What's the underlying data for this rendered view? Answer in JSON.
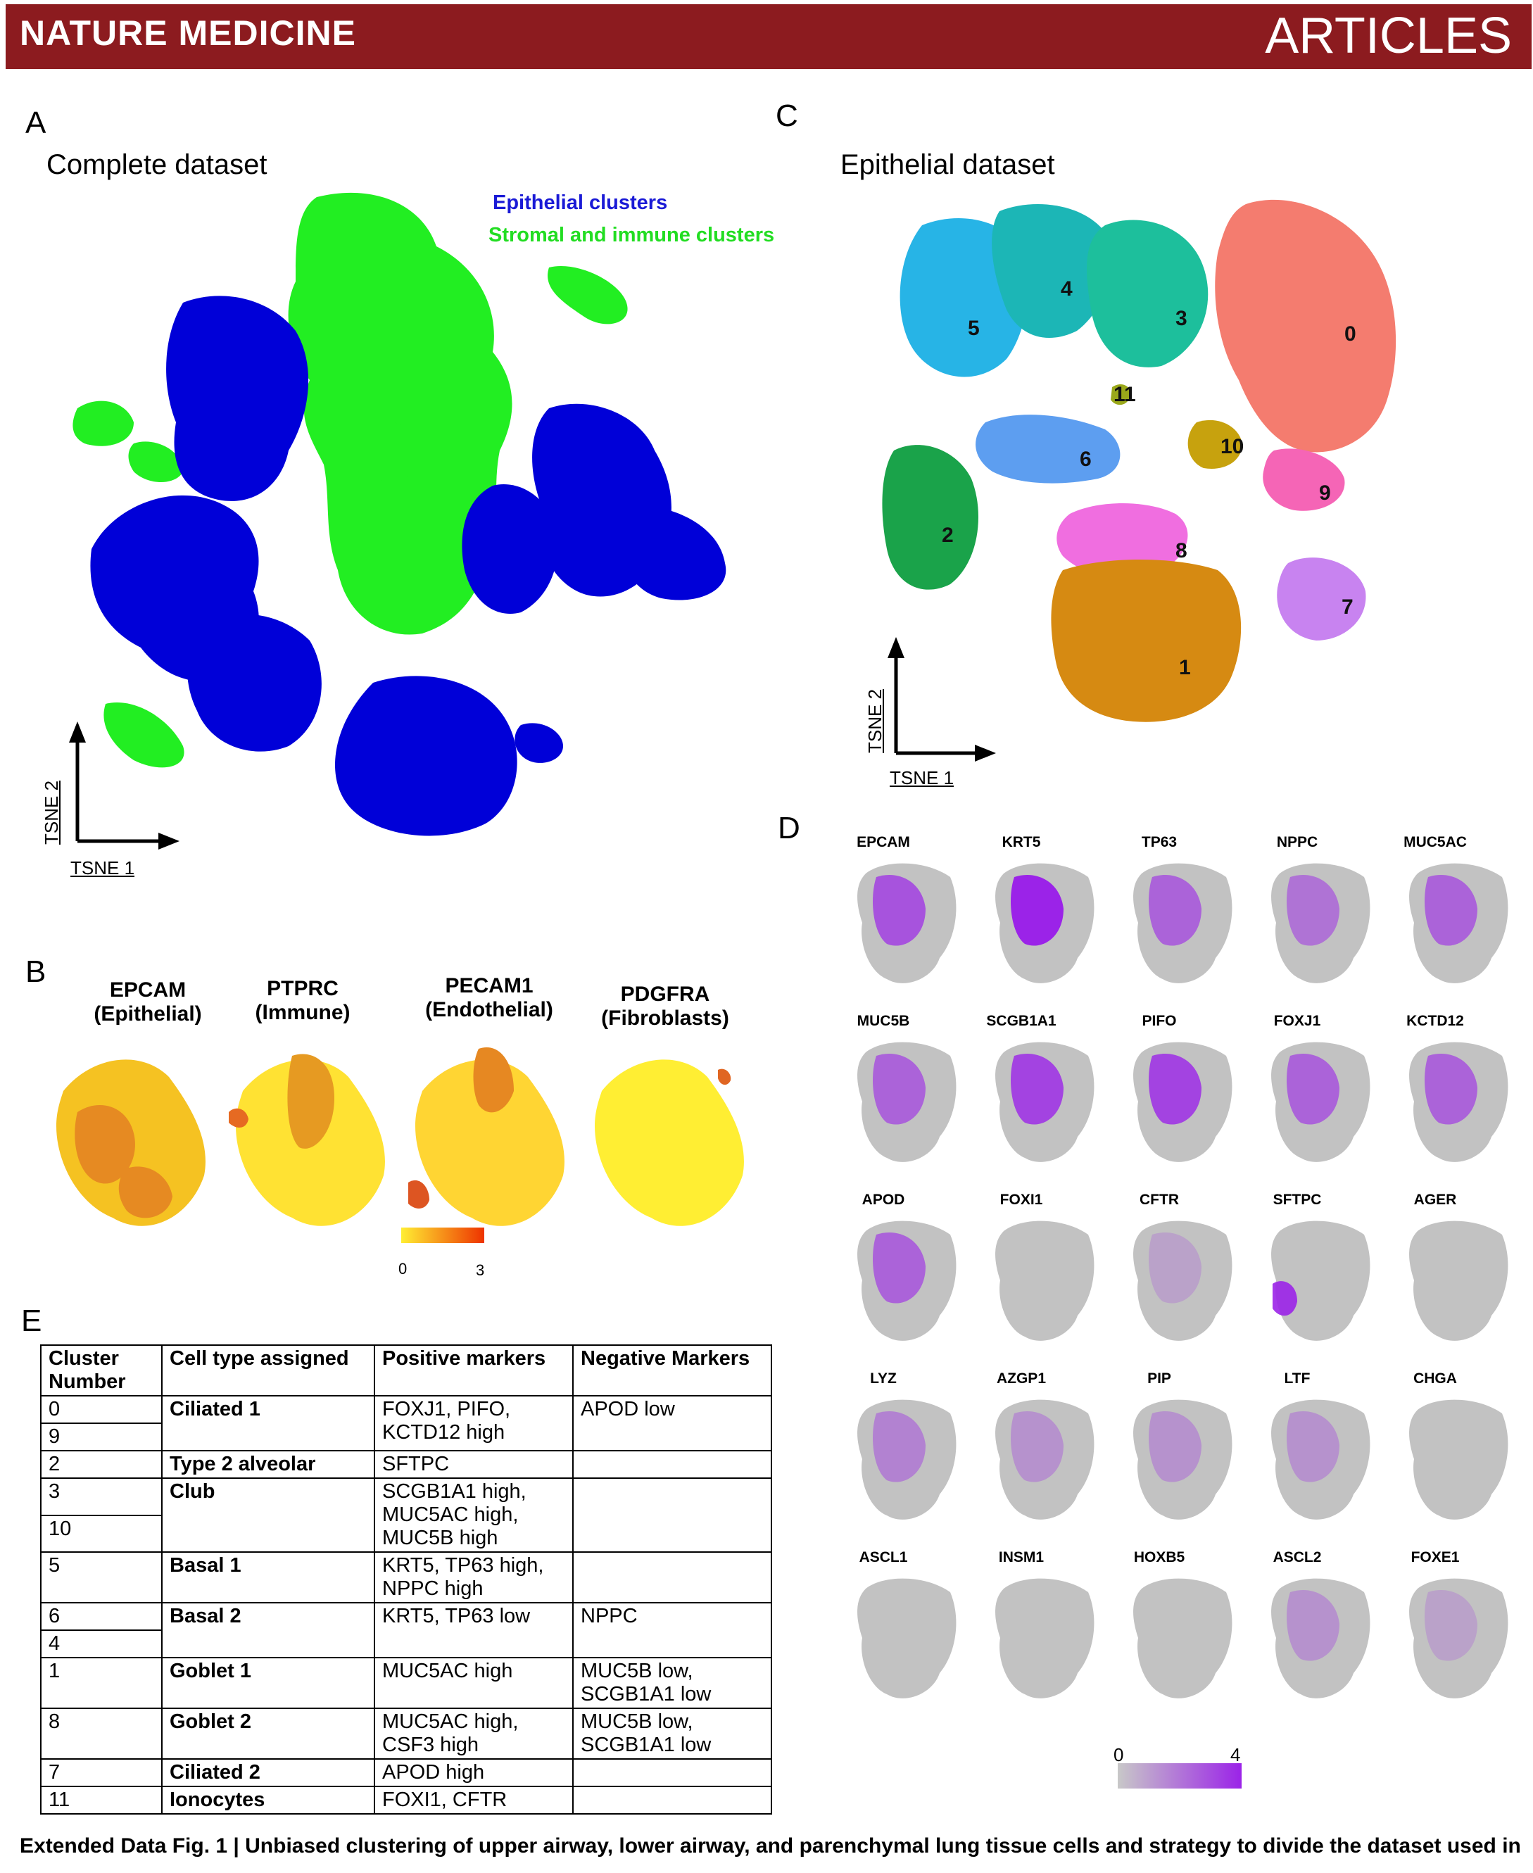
{
  "header": {
    "journal": "NATURE MEDICINE",
    "section": "ARTICLES"
  },
  "panel_a": {
    "letter": "A",
    "title": "Complete dataset",
    "legend": [
      {
        "label": "Epithelial clusters",
        "color": "#0000cc"
      },
      {
        "label": "Stromal and immune clusters",
        "color": "#22ee22"
      }
    ],
    "xlabel": "TSNE 1",
    "ylabel": "TSNE 2"
  },
  "panel_b": {
    "letter": "B",
    "markers": [
      {
        "gene": "EPCAM",
        "type": "(Epithelial)"
      },
      {
        "gene": "PTPRC",
        "type": "(Immune)"
      },
      {
        "gene": "PECAM1",
        "type": "(Endothelial)"
      },
      {
        "gene": "PDGFRA",
        "type": "(Fibroblasts)"
      }
    ],
    "scale_min": "0",
    "scale_max": "3"
  },
  "panel_c": {
    "letter": "C",
    "title": "Epithelial dataset",
    "xlabel": "TSNE 1",
    "ylabel": "TSNE 2",
    "clusters": [
      {
        "id": "0",
        "color": "#f47c6f"
      },
      {
        "id": "1",
        "color": "#d68a12"
      },
      {
        "id": "2",
        "color": "#1aa34a"
      },
      {
        "id": "3",
        "color": "#1dbf9c"
      },
      {
        "id": "4",
        "color": "#1cb6b6"
      },
      {
        "id": "5",
        "color": "#27b4e6"
      },
      {
        "id": "6",
        "color": "#5d9ef0"
      },
      {
        "id": "7",
        "color": "#c883f0"
      },
      {
        "id": "8",
        "color": "#f06ee0"
      },
      {
        "id": "9",
        "color": "#f565b6"
      },
      {
        "id": "10",
        "color": "#c7a20e"
      },
      {
        "id": "11",
        "color": "#9aa81a"
      }
    ]
  },
  "panel_d": {
    "letter": "D",
    "genes": [
      "EPCAM",
      "KRT5",
      "TP63",
      "NPPC",
      "MUC5AC",
      "MUC5B",
      "SCGB1A1",
      "PIFO",
      "FOXJ1",
      "KCTD12",
      "APOD",
      "FOXI1",
      "CFTR",
      "SFTPC",
      "AGER",
      "LYZ",
      "AZGP1",
      "PIP",
      "LTF",
      "CHGA",
      "ASCL1",
      "INSM1",
      "HOXB5",
      "ASCL2",
      "FOXE1"
    ],
    "scale_min": "0",
    "scale_max": "4"
  },
  "panel_e": {
    "letter": "E",
    "headers": [
      "Cluster Number",
      "Cell type assigned",
      "Positive markers",
      "Negative Markers"
    ],
    "rows": [
      {
        "clusters": [
          "0",
          "9"
        ],
        "cell_type": "Ciliated 1",
        "positive": "FOXJ1, PIFO, KCTD12 high",
        "negative": "APOD low"
      },
      {
        "clusters": [
          "2"
        ],
        "cell_type": "Type 2 alveolar",
        "positive": "SFTPC",
        "negative": ""
      },
      {
        "clusters": [
          "3",
          "10"
        ],
        "cell_type": "Club",
        "positive": "SCGB1A1 high, MUC5AC high, MUC5B high",
        "negative": ""
      },
      {
        "clusters": [
          "5"
        ],
        "cell_type": "Basal 1",
        "positive": "KRT5, TP63 high, NPPC high",
        "negative": ""
      },
      {
        "clusters": [
          "6",
          "4"
        ],
        "cell_type": "Basal 2",
        "positive": "KRT5, TP63 low",
        "negative": "NPPC"
      },
      {
        "clusters": [
          "1"
        ],
        "cell_type": "Goblet 1",
        "positive": "MUC5AC high",
        "negative": "MUC5B low, SCGB1A1 low"
      },
      {
        "clusters": [
          "8"
        ],
        "cell_type": "Goblet 2",
        "positive": "MUC5AC high, CSF3 high",
        "negative": "MUC5B low, SCGB1A1 low"
      },
      {
        "clusters": [
          "7"
        ],
        "cell_type": "Ciliated 2",
        "positive": "APOD high",
        "negative": ""
      },
      {
        "clusters": [
          "11"
        ],
        "cell_type": "Ionocytes",
        "positive": "FOXI1, CFTR",
        "negative": ""
      }
    ]
  },
  "caption": {
    "label": "Extended Data Fig. 1 |",
    "text": "Unbiased clustering of upper airway, lower airway, and parenchymal lung tissue cells and strategy to divide the dataset used in"
  }
}
